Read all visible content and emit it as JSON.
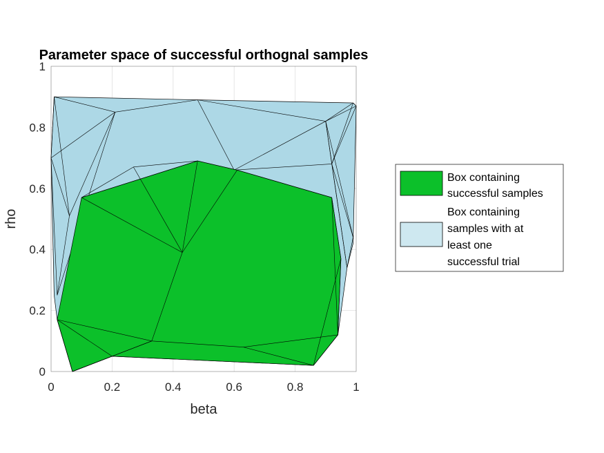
{
  "chart_data": {
    "type": "area",
    "title": "Parameter space of successful orthognal samples",
    "xlabel": "beta",
    "ylabel": "rho",
    "xlim": [
      0,
      1
    ],
    "ylim": [
      0,
      1
    ],
    "xticks": [
      "0",
      "0.2",
      "0.4",
      "0.6",
      "0.8",
      "1"
    ],
    "yticks": [
      "0",
      "0.2",
      "0.4",
      "0.6",
      "0.8",
      "1"
    ],
    "grid": true,
    "legend_placement": "right",
    "series": [
      {
        "name_lines": [
          "Box containing",
          "samples with at",
          "least one",
          "successful trial"
        ],
        "color": "#ADD8E6",
        "hull": [
          [
            0.01,
            0.9
          ],
          [
            0.48,
            0.89
          ],
          [
            0.99,
            0.88
          ],
          [
            1.0,
            0.87
          ],
          [
            0.99,
            0.42
          ],
          [
            0.97,
            0.34
          ],
          [
            0.94,
            0.12
          ],
          [
            0.86,
            0.02
          ],
          [
            0.2,
            0.05
          ],
          [
            0.07,
            0.0
          ],
          [
            0.02,
            0.17
          ],
          [
            0.01,
            0.25
          ],
          [
            0.0,
            0.7
          ]
        ],
        "mesh_vertices": [
          [
            0.01,
            0.9
          ],
          [
            0.48,
            0.89
          ],
          [
            0.99,
            0.88
          ],
          [
            1.0,
            0.87
          ],
          [
            0.21,
            0.85
          ],
          [
            0.9,
            0.82
          ],
          [
            0.0,
            0.7
          ],
          [
            0.6,
            0.66
          ],
          [
            0.06,
            0.51
          ],
          [
            0.02,
            0.25
          ],
          [
            0.99,
            0.44
          ],
          [
            0.97,
            0.34
          ],
          [
            0.92,
            0.68
          ]
        ]
      },
      {
        "name_lines": [
          "Box containing",
          "successful samples"
        ],
        "color": "#0CC02A",
        "hull": [
          [
            0.1,
            0.57
          ],
          [
            0.48,
            0.69
          ],
          [
            0.61,
            0.66
          ],
          [
            0.92,
            0.57
          ],
          [
            0.95,
            0.37
          ],
          [
            0.94,
            0.12
          ],
          [
            0.86,
            0.02
          ],
          [
            0.2,
            0.05
          ],
          [
            0.07,
            0.0
          ],
          [
            0.02,
            0.17
          ]
        ],
        "mesh_vertices": [
          [
            0.1,
            0.57
          ],
          [
            0.48,
            0.69
          ],
          [
            0.61,
            0.66
          ],
          [
            0.92,
            0.57
          ],
          [
            0.95,
            0.37
          ],
          [
            0.94,
            0.12
          ],
          [
            0.86,
            0.02
          ],
          [
            0.63,
            0.08
          ],
          [
            0.33,
            0.1
          ],
          [
            0.2,
            0.05
          ],
          [
            0.07,
            0.0
          ],
          [
            0.02,
            0.17
          ],
          [
            0.43,
            0.39
          ],
          [
            0.27,
            0.67
          ]
        ]
      }
    ]
  }
}
